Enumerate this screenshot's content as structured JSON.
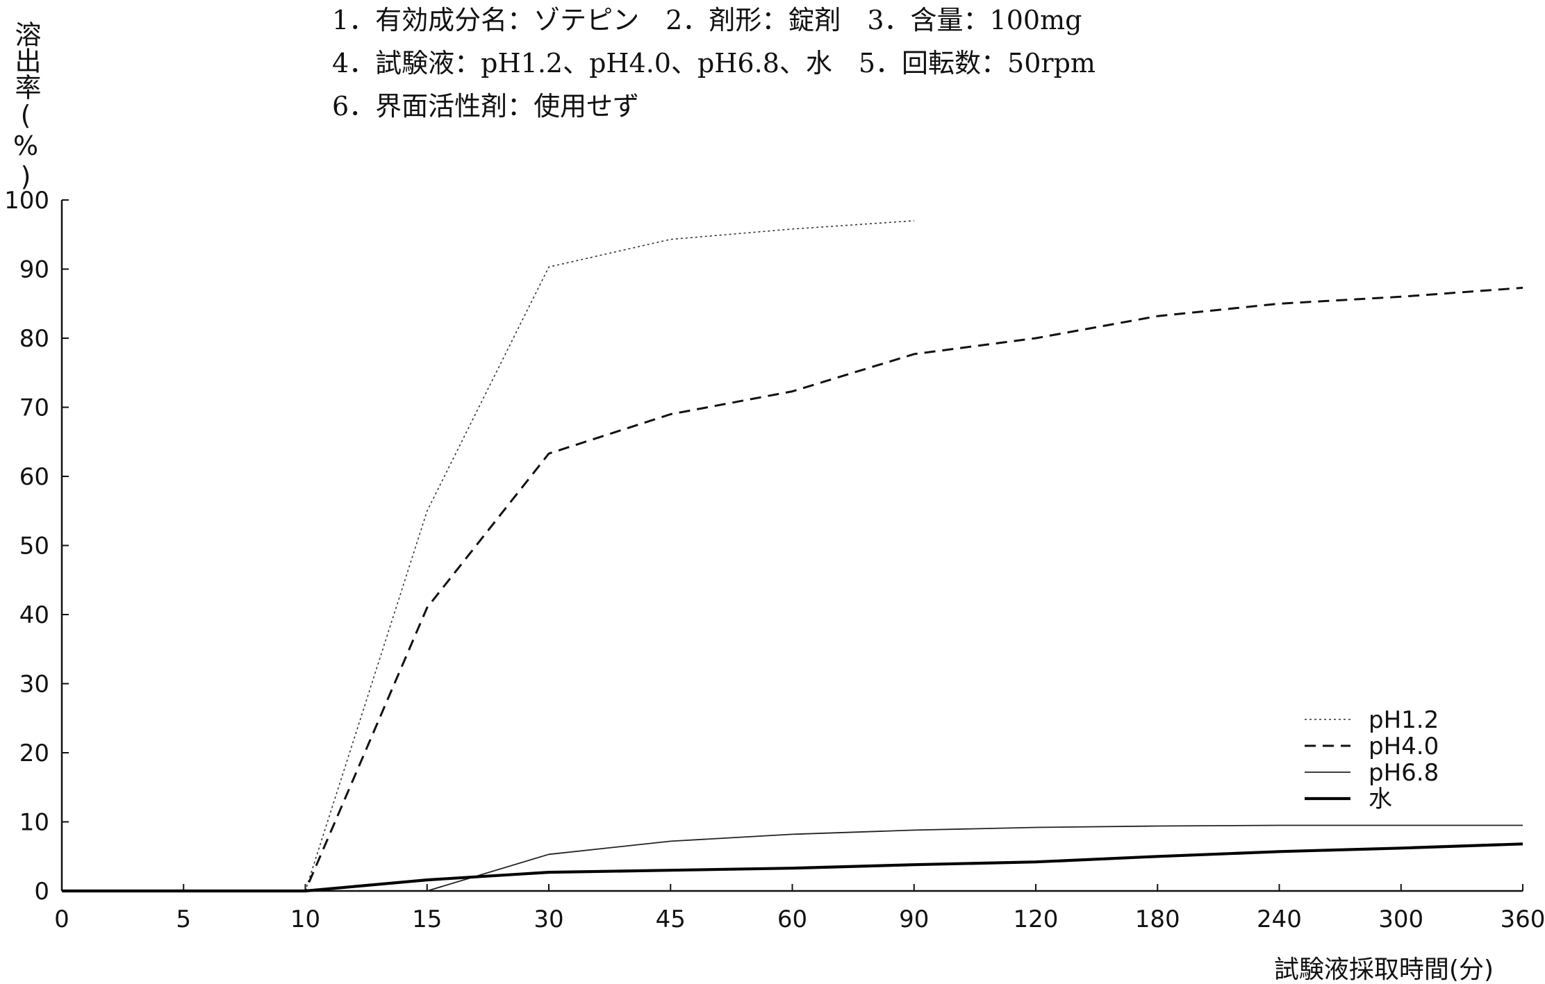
{
  "header": {
    "line1": "1．有効成分名：ゾテピン　2．剤形：錠剤　3．含量：100mg",
    "line2": "4．試験液：pH1.2、pH4.0、pH6.8、水　5．回転数：50rpm",
    "line3": "6．界面活性剤：使用せず"
  },
  "chart_data": {
    "type": "line",
    "title": "",
    "xlabel": "試験液採取時間(分)",
    "ylabel": "溶出率(%)",
    "categories": [
      "0",
      "5",
      "10",
      "15",
      "30",
      "45",
      "60",
      "90",
      "120",
      "180",
      "240",
      "300",
      "360"
    ],
    "y_ticks": [
      0,
      10,
      20,
      30,
      40,
      50,
      60,
      70,
      80,
      90,
      100
    ],
    "ylim": [
      0,
      100
    ],
    "x_scale": "categorical, equally spaced",
    "grid": false,
    "legend_position": "bottom-right",
    "series": [
      {
        "name": "pH1.2",
        "line_style": "dotted-thin",
        "points": [
          [
            0,
            0
          ],
          [
            5,
            0
          ],
          [
            10,
            0
          ],
          [
            15,
            55
          ],
          [
            30,
            90.3
          ],
          [
            45,
            94.3
          ],
          [
            60,
            95.8
          ],
          [
            90,
            97
          ]
        ]
      },
      {
        "name": "pH4.0",
        "line_style": "dashed",
        "points": [
          [
            0,
            0
          ],
          [
            5,
            0
          ],
          [
            10,
            0
          ],
          [
            15,
            41
          ],
          [
            30,
            63.3
          ],
          [
            45,
            69
          ],
          [
            60,
            72.3
          ],
          [
            90,
            77.7
          ],
          [
            120,
            80
          ],
          [
            180,
            83.2
          ],
          [
            240,
            85
          ],
          [
            300,
            86
          ],
          [
            360,
            87.3
          ]
        ]
      },
      {
        "name": "pH6.8",
        "line_style": "solid-thin",
        "points": [
          [
            15,
            0
          ],
          [
            30,
            5.3
          ],
          [
            45,
            7.2
          ],
          [
            60,
            8.2
          ],
          [
            90,
            8.8
          ],
          [
            120,
            9.2
          ],
          [
            180,
            9.4
          ],
          [
            240,
            9.5
          ],
          [
            300,
            9.5
          ],
          [
            360,
            9.5
          ]
        ]
      },
      {
        "name": "水",
        "line_style": "solid-thick",
        "points": [
          [
            0,
            0
          ],
          [
            5,
            0
          ],
          [
            10,
            0
          ],
          [
            15,
            1.6
          ],
          [
            30,
            2.7
          ],
          [
            45,
            3
          ],
          [
            60,
            3.3
          ],
          [
            90,
            3.8
          ],
          [
            120,
            4.2
          ],
          [
            180,
            5
          ],
          [
            240,
            5.7
          ],
          [
            300,
            6.2
          ],
          [
            360,
            6.8
          ]
        ]
      }
    ]
  }
}
